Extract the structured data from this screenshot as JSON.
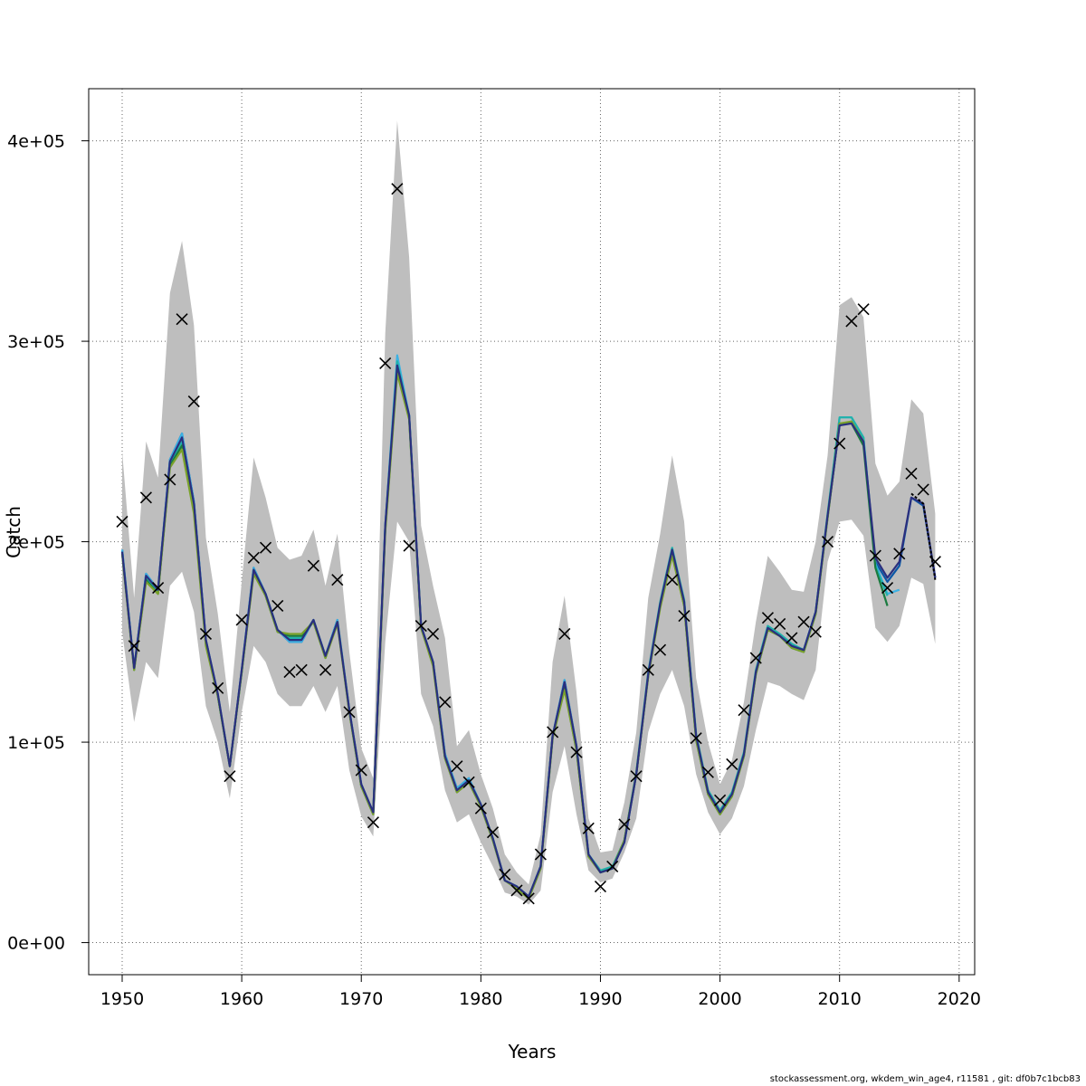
{
  "chart_data": {
    "type": "line",
    "xlabel": "Years",
    "ylabel": "Catch",
    "xlim": [
      1947.2,
      2021.3
    ],
    "ylim": [
      -16000,
      426000
    ],
    "x_ticks": [
      1950,
      1960,
      1970,
      1980,
      1990,
      2000,
      2010,
      2020
    ],
    "x_tick_labels": [
      "1950",
      "1960",
      "1970",
      "1980",
      "1990",
      "2000",
      "2010",
      "2020"
    ],
    "y_ticks": [
      0,
      100000,
      200000,
      300000,
      400000
    ],
    "y_tick_labels": [
      "0e+00",
      "1e+05",
      "2e+05",
      "3e+05",
      "4e+05"
    ],
    "grid": true,
    "grid_style": "dotted",
    "band_color": "#bebebe",
    "colors": {
      "retro_1": "#0a57a6",
      "retro_2": "#3bb1e3",
      "retro_3": "#20b2aa",
      "retro_4": "#1a7a3f",
      "retro_5": "#7aa22a",
      "retro_6": "#2a2f7e",
      "base_dashed": "#000000",
      "observed_marker": "#000000"
    },
    "years": [
      1950,
      1951,
      1952,
      1953,
      1954,
      1955,
      1956,
      1957,
      1958,
      1959,
      1960,
      1961,
      1962,
      1963,
      1964,
      1965,
      1966,
      1967,
      1968,
      1969,
      1970,
      1971,
      1972,
      1973,
      1974,
      1975,
      1976,
      1977,
      1978,
      1979,
      1980,
      1981,
      1982,
      1983,
      1984,
      1985,
      1986,
      1987,
      1988,
      1989,
      1990,
      1991,
      1992,
      1993,
      1994,
      1995,
      1996,
      1997,
      1998,
      1999,
      2000,
      2001,
      2002,
      2003,
      2004,
      2005,
      2006,
      2007,
      2008,
      2009,
      2010,
      2011,
      2012,
      2013,
      2014,
      2015,
      2016,
      2017,
      2018
    ],
    "observed": [
      210000,
      148000,
      222000,
      177000,
      231000,
      311000,
      270000,
      154000,
      127000,
      83000,
      161000,
      192000,
      197000,
      168000,
      135000,
      136000,
      188000,
      136000,
      181000,
      115000,
      86000,
      60000,
      289000,
      376000,
      198000,
      158000,
      154000,
      120000,
      88000,
      80000,
      67000,
      55000,
      34000,
      26000,
      22000,
      44000,
      105000,
      154000,
      95000,
      57000,
      28000,
      38000,
      59000,
      83000,
      136000,
      146000,
      181000,
      163000,
      102000,
      85000,
      71000,
      89000,
      116000,
      142000,
      162000,
      159000,
      152000,
      160000,
      155000,
      200000,
      249000,
      310000,
      316000,
      193000,
      177000,
      194000,
      234000,
      226000,
      190000
    ],
    "band_low": [
      155000,
      110000,
      140000,
      132000,
      178000,
      185000,
      165000,
      118000,
      100000,
      72000,
      115000,
      148000,
      140000,
      124000,
      118000,
      118000,
      128000,
      115000,
      128000,
      86000,
      63000,
      53000,
      150000,
      210000,
      200000,
      124000,
      108000,
      76000,
      60000,
      64000,
      50000,
      38000,
      25000,
      23000,
      19000,
      26000,
      75000,
      98000,
      64000,
      36000,
      30000,
      32000,
      45000,
      62000,
      105000,
      124000,
      136000,
      118000,
      84000,
      65000,
      54000,
      62000,
      78000,
      106000,
      130000,
      128000,
      124000,
      121000,
      136000,
      190000,
      210000,
      211000,
      203000,
      157000,
      150000,
      158000,
      182000,
      179000,
      149000
    ],
    "band_high": [
      245000,
      172000,
      250000,
      232000,
      324000,
      350000,
      308000,
      202000,
      164000,
      115000,
      180000,
      242000,
      222000,
      197000,
      191000,
      193000,
      206000,
      178000,
      204000,
      145000,
      97000,
      82000,
      304000,
      410000,
      342000,
      208000,
      178000,
      152000,
      98000,
      106000,
      84000,
      67000,
      44000,
      35000,
      29000,
      54000,
      140000,
      173000,
      125000,
      62000,
      45000,
      46000,
      70000,
      105000,
      172000,
      204000,
      243000,
      210000,
      132000,
      100000,
      79000,
      91000,
      120000,
      160000,
      193000,
      185000,
      176000,
      175000,
      200000,
      243000,
      318000,
      322000,
      312000,
      239000,
      223000,
      230000,
      271000,
      264000,
      214000
    ],
    "series": [
      {
        "values": [
          196000,
          137000,
          184000,
          176000,
          241000,
          254000,
          220000,
          151000,
          124000,
          88000,
          136000,
          187000,
          174000,
          156000,
          150000,
          150000,
          161000,
          143000,
          161000,
          116000,
          79000,
          65000,
          208000,
          290000,
          263000,
          158000,
          140000,
          94000,
          77000,
          82000,
          69000,
          52000,
          31000,
          28000,
          23000,
          38000,
          103000,
          131000,
          98000,
          44000,
          35000,
          37000,
          50000,
          84000,
          134000,
          169000,
          196000,
          170000,
          103000,
          75000,
          65000,
          74000,
          94000,
          135000,
          157000,
          153000,
          148000,
          146000,
          165000,
          213000,
          258000,
          260000,
          250000,
          190000,
          180000,
          188000,
          222000,
          218000,
          182000
        ]
      },
      {
        "values": [
          196000,
          137000,
          184000,
          176000,
          241000,
          254000,
          220000,
          151000,
          124000,
          88000,
          136000,
          187000,
          174000,
          156000,
          150000,
          150000,
          161000,
          143000,
          161000,
          116000,
          79000,
          65000,
          208000,
          293000,
          263000,
          158000,
          140000,
          94000,
          77000,
          82000,
          69000,
          52000,
          31000,
          28000,
          23000,
          38000,
          103000,
          131000,
          98000,
          44000,
          35000,
          37000,
          50000,
          84000,
          134000,
          169000,
          196000,
          170000,
          103000,
          75000,
          65000,
          74000,
          94000,
          135000,
          158000,
          154000,
          149000,
          146000,
          165000,
          213000,
          262000,
          262000,
          252000,
          189000,
          174000,
          176000
        ]
      },
      {
        "values": [
          195000,
          137000,
          182000,
          175000,
          239000,
          250000,
          218000,
          150000,
          123000,
          88000,
          135000,
          186000,
          174000,
          156000,
          152000,
          152000,
          161000,
          143000,
          160000,
          116000,
          78000,
          65000,
          207000,
          290000,
          262000,
          157000,
          140000,
          93000,
          76000,
          81000,
          69000,
          52000,
          31000,
          28000,
          23000,
          38000,
          103000,
          129000,
          97000,
          44000,
          36000,
          38000,
          51000,
          85000,
          135000,
          170000,
          197000,
          171000,
          104000,
          76000,
          66000,
          75000,
          95000,
          136000,
          158000,
          154000,
          149000,
          146000,
          165000,
          214000,
          262000,
          262000,
          252000,
          188000,
          173000
        ]
      },
      {
        "values": [
          194000,
          136000,
          181000,
          174000,
          238000,
          248000,
          216000,
          149000,
          123000,
          88000,
          135000,
          185000,
          173000,
          155000,
          153000,
          153000,
          160000,
          142000,
          160000,
          115000,
          78000,
          64000,
          206000,
          286000,
          262000,
          157000,
          139000,
          92000,
          75000,
          80000,
          68000,
          51000,
          31000,
          27000,
          22000,
          37000,
          102000,
          127000,
          96000,
          43000,
          35000,
          37000,
          51000,
          84000,
          133000,
          168000,
          194000,
          168000,
          101000,
          74000,
          64000,
          73000,
          93000,
          134000,
          156000,
          153000,
          147000,
          145000,
          164000,
          212000,
          259000,
          259000,
          248000,
          187000,
          168000
        ]
      },
      {
        "values": [
          194000,
          136000,
          180000,
          174000,
          237000,
          246000,
          214000,
          148000,
          123000,
          88000,
          135000,
          184000,
          173000,
          155000,
          154000,
          154000,
          160000,
          142000,
          159000,
          115000,
          78000,
          64000,
          205000,
          284000,
          261000,
          157000,
          138000,
          92000,
          75000,
          80000,
          68000,
          51000,
          31000,
          27000,
          22000,
          37000,
          102000,
          126000,
          96000,
          43000,
          35000,
          37000,
          51000,
          84000,
          133000,
          167000,
          193000,
          168000,
          101000,
          74000,
          64000,
          73000,
          93000,
          134000,
          156000,
          153000,
          147000,
          145000,
          164000,
          212000,
          259000,
          260000,
          250000
        ]
      },
      {
        "values": [
          195000,
          137000,
          183000,
          176000,
          240000,
          252000,
          219000,
          151000,
          124000,
          88000,
          136000,
          186000,
          174000,
          156000,
          151000,
          151000,
          161000,
          143000,
          160000,
          116000,
          79000,
          65000,
          208000,
          288000,
          263000,
          158000,
          140000,
          93000,
          76000,
          81000,
          69000,
          52000,
          31000,
          28000,
          23000,
          38000,
          103000,
          130000,
          98000,
          44000,
          35000,
          37000,
          50000,
          84000,
          134000,
          169000,
          196000,
          170000,
          103000,
          75000,
          65000,
          74000,
          94000,
          135000,
          157000,
          153000,
          148000,
          146000,
          165000,
          213000,
          258000,
          259000,
          250000,
          192000,
          182000,
          190000,
          222000,
          219000,
          182000
        ]
      },
      {
        "values": [
          null,
          null,
          null,
          null,
          null,
          null,
          null,
          null,
          null,
          null,
          null,
          null,
          null,
          null,
          null,
          null,
          null,
          null,
          null,
          null,
          null,
          null,
          null,
          null,
          null,
          null,
          null,
          null,
          null,
          null,
          null,
          null,
          null,
          null,
          null,
          null,
          null,
          null,
          null,
          null,
          null,
          null,
          null,
          null,
          null,
          null,
          null,
          null,
          null,
          null,
          null,
          null,
          null,
          null,
          null,
          null,
          null,
          null,
          null,
          null,
          null,
          null,
          null,
          null,
          null,
          null,
          224000,
          219000,
          181000
        ]
      }
    ]
  },
  "footer": {
    "text": "stockassessment.org, wkdem_win_age4, r11581 , git: df0b7c1bcb83"
  }
}
